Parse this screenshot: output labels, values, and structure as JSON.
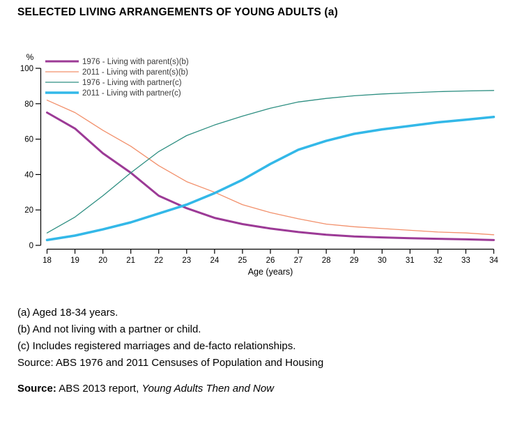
{
  "title": "SELECTED LIVING ARRANGEMENTS OF YOUNG ADULTS (a)",
  "chart_data": {
    "type": "line",
    "title": "SELECTED LIVING ARRANGEMENTS OF YOUNG ADULTS (a)",
    "xlabel": "Age (years)",
    "ylabel": "%",
    "x": [
      18,
      19,
      20,
      21,
      22,
      23,
      24,
      25,
      26,
      27,
      28,
      29,
      30,
      31,
      32,
      33,
      34
    ],
    "xlim": [
      18,
      34
    ],
    "ylim": [
      0,
      100
    ],
    "yticks": [
      0,
      20,
      40,
      60,
      80,
      100
    ],
    "grid": false,
    "legend_position": "top-left",
    "series": [
      {
        "name": "1976 - Living with parent(s)(b)",
        "color": "#9C3A96",
        "width": 3,
        "values": [
          75,
          66,
          52,
          41,
          28,
          21,
          15.5,
          12,
          9.5,
          7.5,
          6,
          5,
          4.5,
          4,
          3.7,
          3.4,
          3
        ]
      },
      {
        "name": "2011 - Living with parent(s)(b)",
        "color": "#F2906B",
        "width": 1.3,
        "values": [
          82,
          75,
          65,
          56,
          45,
          36,
          30,
          23,
          18.5,
          15,
          12,
          10.5,
          9.5,
          8.5,
          7.5,
          7,
          6
        ]
      },
      {
        "name": "1976 - Living with partner(c)",
        "color": "#2E8F82",
        "width": 1.3,
        "values": [
          7,
          16,
          28,
          41,
          53,
          62,
          68,
          73,
          77.5,
          81,
          83,
          84.5,
          85.5,
          86.2,
          86.8,
          87.2,
          87.5
        ]
      },
      {
        "name": "2011 - Living with partner(c)",
        "color": "#33B8E8",
        "width": 3.5,
        "values": [
          3,
          5.5,
          9,
          13,
          18,
          23,
          29.5,
          37,
          46,
          54,
          59,
          63,
          65.5,
          67.5,
          69.5,
          71,
          72.5
        ]
      }
    ]
  },
  "footnotes": [
    "(a) Aged 18-34 years.",
    "(b) And not living with a partner or child.",
    "(c) Includes registered marriages and de-facto relationships.",
    "Source: ABS 1976 and 2011 Censuses of Population and Housing"
  ],
  "source": {
    "label": "Source:",
    "text": " ABS 2013 report, ",
    "title_italic": "Young Adults Then and Now"
  }
}
